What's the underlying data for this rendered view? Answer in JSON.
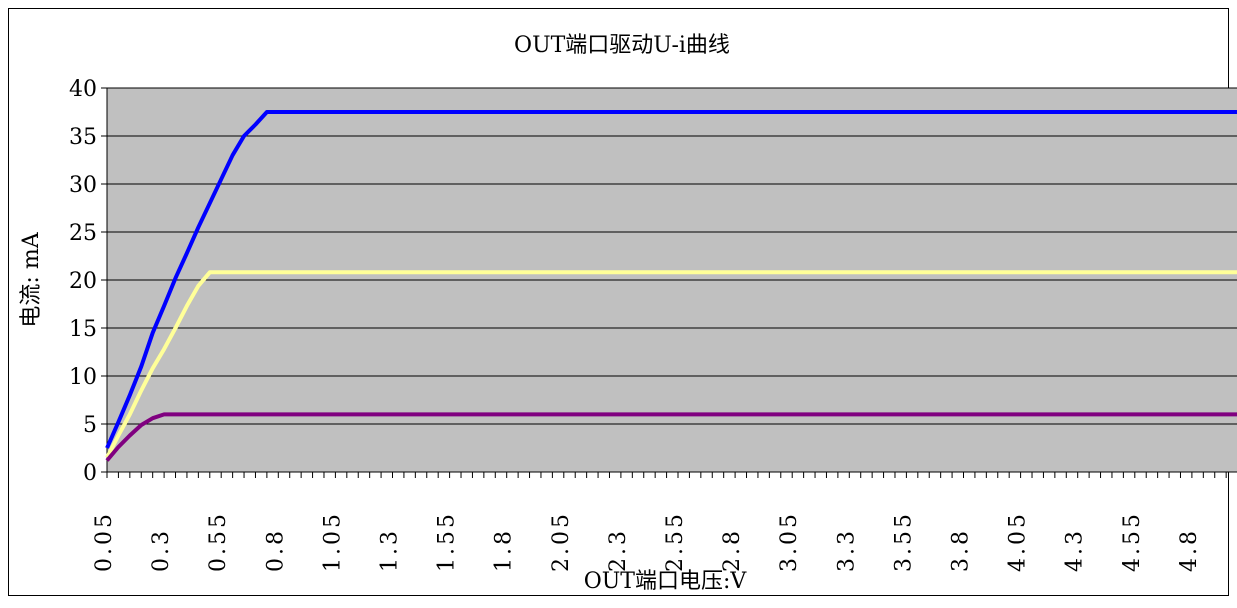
{
  "chart_data": {
    "type": "line",
    "title": "OUT端口驱动U-i曲线",
    "xlabel": "OUT端口电压:V",
    "ylabel": "电流: mA",
    "ylim": [
      0,
      40
    ],
    "yticks": [
      "0",
      "5",
      "10",
      "15",
      "20",
      "25",
      "30",
      "35",
      "40"
    ],
    "x_tick_labels": [
      "0.05",
      "0.3",
      "0.55",
      "0.8",
      "1.05",
      "1.3",
      "1.55",
      "1.8",
      "2.05",
      "2.3",
      "2.55",
      "2.8",
      "3.05",
      "3.3",
      "3.55",
      "3.8",
      "4.05",
      "4.3",
      "4.55",
      "4.8"
    ],
    "x": [
      0.05,
      0.1,
      0.15,
      0.2,
      0.25,
      0.3,
      0.35,
      0.4,
      0.45,
      0.5,
      0.55,
      0.6,
      0.65,
      0.7,
      0.75,
      0.8,
      0.85,
      0.9,
      0.95,
      1.0,
      5.0
    ],
    "grid": true,
    "background": "#c0c0c0",
    "series": [
      {
        "color": "#0000ff",
        "values": [
          2.5,
          5.2,
          8.0,
          11.0,
          14.5,
          17.3,
          20.2,
          22.8,
          25.5,
          28.0,
          30.5,
          33.0,
          35.0,
          36.2,
          37.5,
          37.5,
          37.5,
          37.5,
          37.5,
          37.5,
          37.5
        ]
      },
      {
        "color": "#ffff99",
        "values": [
          1.5,
          3.8,
          6.0,
          8.5,
          10.8,
          12.8,
          15.0,
          17.3,
          19.4,
          20.8,
          20.8,
          20.8,
          20.8,
          20.8,
          20.8,
          20.8,
          20.8,
          20.8,
          20.8,
          20.8,
          20.8
        ]
      },
      {
        "color": "#800080",
        "values": [
          1.2,
          2.6,
          3.8,
          4.9,
          5.6,
          6.0,
          6.0,
          6.0,
          6.0,
          6.0,
          6.0,
          6.0,
          6.0,
          6.0,
          6.0,
          6.0,
          6.0,
          6.0,
          6.0,
          6.0,
          6.0
        ]
      }
    ]
  }
}
